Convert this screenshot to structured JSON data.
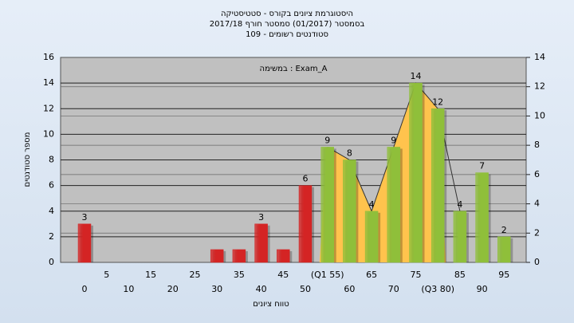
{
  "chart_data": {
    "type": "bar",
    "title": [
      "היסטוגרמת ציונים בקורס - סטטיסטיקה",
      "בסמסטר  (01/2017)  סמסטר חורף 2017/18",
      "סטודנטים רשומים - 109"
    ],
    "annotation": "במשימה : Exam_A",
    "ylabel": "מספר סטודנטים",
    "xlabel": "טווח ציונים",
    "categories": [
      "0",
      "5",
      "10",
      "15",
      "20",
      "25",
      "30",
      "35",
      "40",
      "45",
      "50",
      "(Q1 55)",
      "60",
      "65",
      "70",
      "75",
      "(Q3 80)",
      "85",
      "90",
      "95"
    ],
    "values": [
      3,
      0,
      0,
      0,
      0,
      0,
      1,
      1,
      3,
      1,
      6,
      9,
      8,
      4,
      9,
      14,
      12,
      4,
      7,
      2
    ],
    "value_labels": [
      "3",
      null,
      null,
      null,
      null,
      null,
      null,
      null,
      "3",
      null,
      "6",
      "9",
      "8",
      "4",
      "9",
      "14",
      "12",
      "4",
      "7",
      "2"
    ],
    "colors": [
      "#d42424",
      "#d42424",
      "#d42424",
      "#d42424",
      "#d42424",
      "#d42424",
      "#d42424",
      "#d42424",
      "#d42424",
      "#d42424",
      "#d42424",
      "#8fbf3a",
      "#8fbf3a",
      "#8fbf3a",
      "#8fbf3a",
      "#8fbf3a",
      "#8fbf3a",
      "#8fbf3a",
      "#8fbf3a",
      "#8fbf3a"
    ],
    "area_color": "#ffc34d",
    "ylim": [
      0,
      16
    ],
    "yticks": [
      0,
      2,
      4,
      6,
      8,
      10,
      12,
      14,
      16
    ],
    "y2lim": [
      0,
      14
    ],
    "y2ticks": [
      0,
      2,
      4,
      6,
      8,
      10,
      12,
      14
    ],
    "grid": true
  }
}
